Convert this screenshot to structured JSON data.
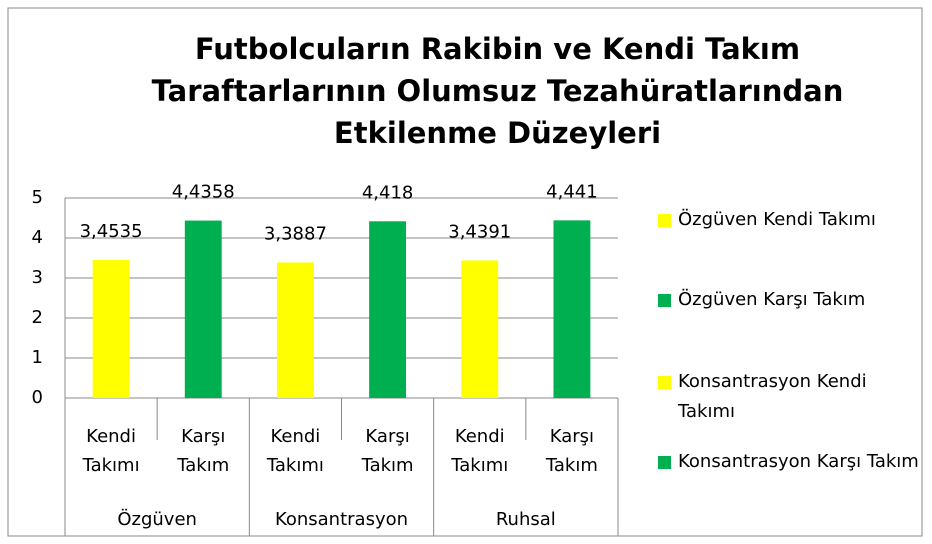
{
  "chart_data": {
    "type": "bar",
    "title": "Futbolcuların Rakibin ve Kendi Takım Taraftarlarının Olumsuz Tezahüratlarından Etkilenme Düzeyleri",
    "categories": [
      "Kendi Takımı",
      "Karşı Takım",
      "Kendi Takımı",
      "Karşı Takım",
      "Kendi Takımı",
      "Karşı Takım"
    ],
    "groups": [
      "Özgüven",
      "Konsantrasyon",
      "Ruhsal"
    ],
    "values": [
      3.4535,
      4.4358,
      3.3887,
      4.418,
      3.4391,
      4.441
    ],
    "value_labels": [
      "3,4535",
      "4,4358",
      "3,3887",
      "4,418",
      "3,4391",
      "4,441"
    ],
    "colors": [
      "#ffff00",
      "#00b050",
      "#ffff00",
      "#00b050",
      "#ffff00",
      "#00b050"
    ],
    "legend": [
      {
        "name": "Özgüven Kendi Takımı",
        "color": "#ffff00"
      },
      {
        "name": "Özgüven Karşı Takım",
        "color": "#00b050"
      },
      {
        "name": "Konsantrasyon Kendi Takımı",
        "color": "#ffff00"
      },
      {
        "name": "Konsantrasyon Karşı Takım",
        "color": "#00b050"
      }
    ],
    "ylim": [
      0,
      5
    ],
    "yticks": [
      0,
      1,
      2,
      3,
      4,
      5
    ],
    "grid": true
  }
}
